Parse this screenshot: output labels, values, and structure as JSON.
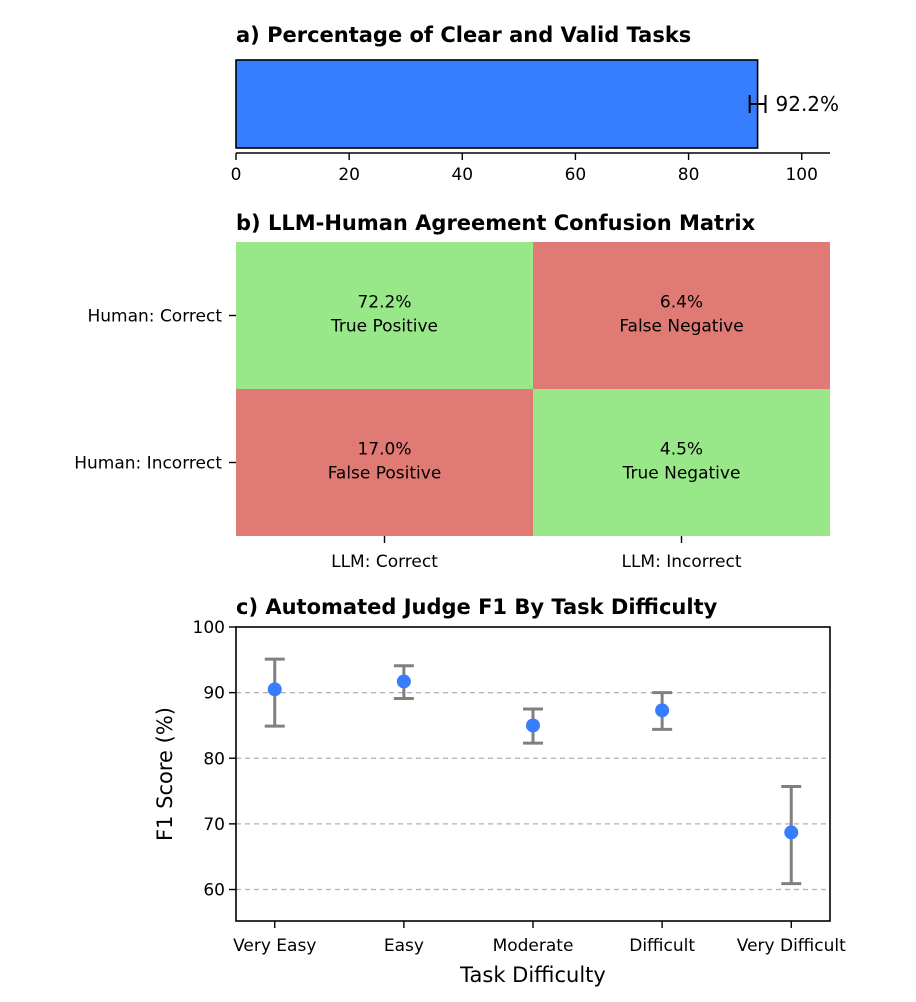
{
  "chart_data": [
    {
      "id": "a",
      "type": "bar",
      "title": "a) Percentage of Clear and Valid Tasks",
      "orientation": "horizontal",
      "values": [
        92.2
      ],
      "error": [
        1.4
      ],
      "value_label": "92.2%",
      "xlim": [
        0,
        105
      ],
      "xticks": [
        0,
        20,
        40,
        60,
        80,
        100
      ],
      "xtick_labels": [
        "0",
        "20",
        "40",
        "60",
        "80",
        "100"
      ],
      "colors": {
        "bar": "#377eff"
      }
    },
    {
      "id": "b",
      "type": "heatmap",
      "title": "b) LLM-Human Agreement Confusion Matrix",
      "row_labels": [
        "Human: Correct",
        "Human: Incorrect"
      ],
      "col_labels": [
        "LLM: Correct",
        "LLM: Incorrect"
      ],
      "cells": [
        [
          {
            "value": "72.2%",
            "label": "True Positive",
            "color": "#98e88a"
          },
          {
            "value": "6.4%",
            "label": "False Negative",
            "color": "#e07a74"
          }
        ],
        [
          {
            "value": "17.0%",
            "label": "False Positive",
            "color": "#e07a74"
          },
          {
            "value": "4.5%",
            "label": "True Negative",
            "color": "#98e88a"
          }
        ]
      ]
    },
    {
      "id": "c",
      "type": "scatter",
      "title": "c) Automated Judge F1 By Task Difficulty",
      "xlabel": "Task Difficulty",
      "ylabel": "F1 Score (%)",
      "categories": [
        "Very Easy",
        "Easy",
        "Moderate",
        "Difficult",
        "Very Difficult"
      ],
      "values": [
        90.5,
        91.7,
        85.0,
        87.3,
        68.7
      ],
      "err_low": [
        84.9,
        89.1,
        82.3,
        84.4,
        60.9
      ],
      "err_high": [
        95.1,
        94.1,
        87.5,
        90.0,
        75.7
      ],
      "ylim": [
        55.2,
        100
      ],
      "yticks": [
        60,
        70,
        80,
        90,
        100
      ],
      "ytick_labels": [
        "60",
        "70",
        "80",
        "90",
        "100"
      ],
      "grid": true,
      "colors": {
        "point": "#377eff",
        "errorbar": "#808080",
        "grid": "#b0b0b0"
      }
    }
  ]
}
